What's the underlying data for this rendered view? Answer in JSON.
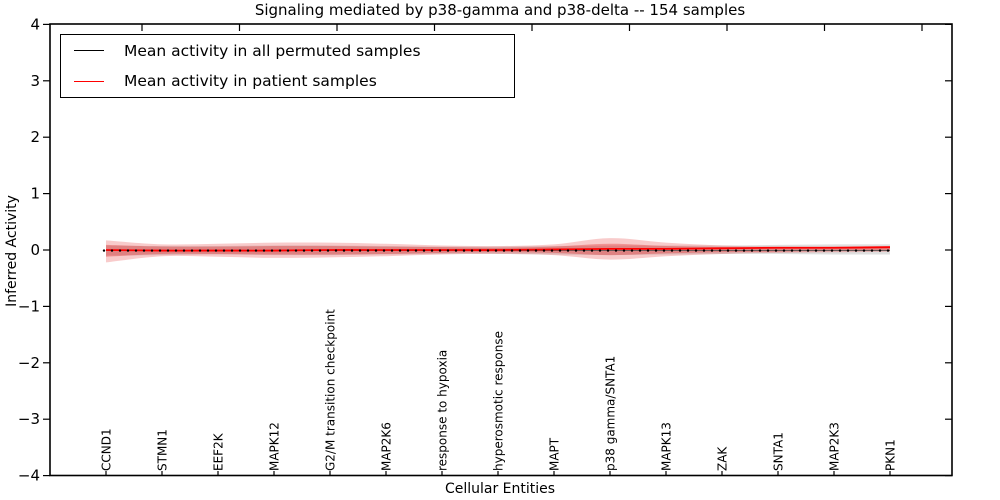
{
  "figure": {
    "title": "Signaling mediated by p38-gamma and p38-delta -- 154 samples"
  },
  "axes": {
    "xlabel": "Cellular Entities",
    "ylabel": "Inferred Activity"
  },
  "chart_data": {
    "type": "line",
    "title": "Signaling mediated by p38-gamma and p38-delta -- 154 samples",
    "xlabel": "Cellular Entities",
    "ylabel": "Inferred Activity",
    "ylim": [
      -4,
      4
    ],
    "yticks": [
      4,
      3,
      2,
      1,
      0,
      -1,
      -2,
      -3,
      -4
    ],
    "grid": false,
    "legend_position": "upper left",
    "categories": [
      "CCND1",
      "STMN1",
      "EEF2K",
      "MAPK12",
      "G2/M transition checkpoint",
      "MAP2K6",
      "response to hypoxia",
      "hyperosmotic response",
      "MAPT",
      "p38 gamma/SNTA1",
      "MAPK13",
      "ZAK",
      "SNTA1",
      "MAP2K3",
      "PKN1"
    ],
    "series": [
      {
        "name": "Mean activity in all permuted samples",
        "color": "#000000",
        "style": "dotted-markers",
        "values": [
          -0.01,
          -0.01,
          -0.01,
          -0.01,
          -0.01,
          -0.01,
          -0.01,
          -0.01,
          -0.01,
          -0.01,
          -0.01,
          -0.01,
          -0.01,
          -0.01,
          -0.01
        ]
      },
      {
        "name": "Mean activity in patient samples",
        "color": "#ff0000",
        "style": "solid",
        "values": [
          0.0,
          -0.01,
          -0.01,
          -0.01,
          0.0,
          0.0,
          0.0,
          0.0,
          0.01,
          0.02,
          0.02,
          0.03,
          0.04,
          0.04,
          0.05
        ]
      }
    ],
    "bands": [
      {
        "name": "permuted-samples-spread",
        "color": "rgba(140,140,140,0.28)",
        "upper": [
          0.08,
          0.07,
          0.07,
          0.08,
          0.08,
          0.07,
          0.06,
          0.06,
          0.07,
          0.08,
          0.08,
          0.08,
          0.09,
          0.1,
          0.1
        ],
        "lower": [
          -0.1,
          -0.09,
          -0.08,
          -0.09,
          -0.09,
          -0.08,
          -0.07,
          -0.07,
          -0.08,
          -0.09,
          -0.08,
          -0.07,
          -0.07,
          -0.08,
          -0.08
        ]
      },
      {
        "name": "patient-samples-spread-outer",
        "color": "rgba(225,20,20,0.22)",
        "upper": [
          0.17,
          0.1,
          0.11,
          0.13,
          0.13,
          0.11,
          0.08,
          0.07,
          0.1,
          0.21,
          0.13,
          0.08,
          0.06,
          0.06,
          0.07
        ],
        "lower": [
          -0.22,
          -0.11,
          -0.12,
          -0.14,
          -0.13,
          -0.11,
          -0.08,
          -0.07,
          -0.09,
          -0.17,
          -0.11,
          -0.07,
          -0.05,
          -0.04,
          -0.03
        ]
      },
      {
        "name": "patient-samples-spread-inner",
        "color": "rgba(225,20,20,0.30)",
        "upper": [
          0.09,
          0.06,
          0.06,
          0.07,
          0.07,
          0.06,
          0.05,
          0.04,
          0.06,
          0.11,
          0.07,
          0.05,
          0.04,
          0.04,
          0.05
        ],
        "lower": [
          -0.12,
          -0.07,
          -0.07,
          -0.08,
          -0.08,
          -0.07,
          -0.05,
          -0.04,
          -0.05,
          -0.09,
          -0.06,
          -0.04,
          -0.03,
          -0.02,
          -0.01
        ]
      }
    ]
  }
}
